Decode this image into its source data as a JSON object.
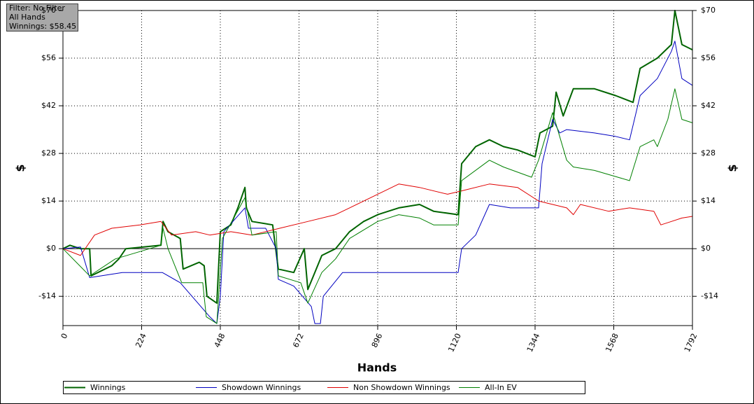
{
  "chart_data": {
    "type": "line",
    "info": [
      "Filter: No Filter",
      "All Hands",
      "Winnings: $58.45"
    ],
    "xlabel": "Hands",
    "ylabel": "$",
    "y2label": "$",
    "xlim": [
      0,
      1792
    ],
    "xticks": [
      0,
      224,
      448,
      672,
      896,
      1120,
      1344,
      1568,
      1792
    ],
    "ylim": [
      -22.6,
      70
    ],
    "yticks": [
      {
        "value": -14,
        "label": "-$14"
      },
      {
        "value": 0,
        "label": "$0"
      },
      {
        "value": 14,
        "label": "$14"
      },
      {
        "value": 28,
        "label": "$28"
      },
      {
        "value": 42,
        "label": "$42"
      },
      {
        "value": 56,
        "label": "$56"
      },
      {
        "value": 70,
        "label": "$70"
      }
    ],
    "grid": true,
    "series": [
      {
        "name": "Winnings",
        "color": "#006400",
        "x": [
          0,
          20,
          50,
          76,
          80,
          139,
          159,
          179,
          279,
          285,
          299,
          334,
          342,
          388,
          402,
          410,
          438,
          448,
          478,
          498,
          518,
          522,
          538,
          597,
          613,
          657,
          687,
          697,
          737,
          776,
          816,
          856,
          896,
          956,
          1015,
          1055,
          1125,
          1135,
          1175,
          1214,
          1254,
          1294,
          1344,
          1358,
          1394,
          1404,
          1424,
          1453,
          1513,
          1573,
          1623,
          1643,
          1692,
          1732,
          1742,
          1762,
          1792
        ],
        "values": [
          0,
          1,
          0,
          0,
          -8,
          -5,
          -3,
          0,
          1,
          8,
          5,
          3,
          -6,
          -4,
          -5,
          -14,
          -16,
          5,
          7,
          12,
          18,
          12,
          8,
          7,
          -6,
          -7,
          0,
          -12,
          -2,
          0,
          5,
          8,
          10,
          12,
          13,
          11,
          10,
          25,
          30,
          32,
          30,
          29,
          27,
          34,
          36,
          46,
          39,
          47,
          47,
          45,
          43,
          53,
          56,
          60,
          70,
          60,
          58.45
        ]
      },
      {
        "name": "Showdown Winnings",
        "color": "#0000c0",
        "x": [
          0,
          50,
          76,
          169,
          283,
          334,
          418,
          438,
          448,
          458,
          518,
          528,
          577,
          607,
          613,
          657,
          707,
          717,
          733,
          741,
          796,
          856,
          936,
          1015,
          1125,
          1135,
          1175,
          1214,
          1274,
          1354,
          1364,
          1394,
          1414,
          1434,
          1513,
          1573,
          1613,
          1643,
          1692,
          1732,
          1742,
          1762,
          1792
        ],
        "values": [
          0,
          0.5,
          -8.5,
          -7,
          -7,
          -10,
          -20,
          -22,
          -14,
          5,
          12,
          6,
          6,
          0,
          -9,
          -11,
          -17,
          -22,
          -22,
          -14,
          -7,
          -7,
          -7,
          -7,
          -7,
          0,
          4,
          13,
          12,
          12,
          25,
          38,
          34,
          35,
          34,
          33,
          32,
          45,
          50,
          58,
          61,
          50,
          48
        ]
      },
      {
        "name": "Non Showdown Winnings",
        "color": "#e00000",
        "x": [
          0,
          50,
          90,
          139,
          219,
          279,
          309,
          378,
          418,
          478,
          538,
          617,
          697,
          776,
          816,
          896,
          956,
          1015,
          1095,
          1135,
          1214,
          1294,
          1354,
          1394,
          1434,
          1453,
          1473,
          1553,
          1613,
          1682,
          1702,
          1732,
          1762,
          1792
        ],
        "values": [
          0,
          -2,
          4,
          6,
          7,
          8,
          4,
          5,
          4,
          5,
          4,
          6,
          8,
          10,
          12,
          16,
          19,
          18,
          16,
          17,
          19,
          18,
          14,
          13,
          12,
          10,
          13,
          11,
          12,
          11,
          7,
          8,
          9,
          9.5
        ]
      },
      {
        "name": "All-In EV",
        "color": "#008000",
        "x": [
          0,
          76,
          149,
          279,
          285,
          299,
          338,
          398,
          408,
          438,
          454,
          518,
          538,
          607,
          613,
          677,
          697,
          737,
          776,
          816,
          896,
          956,
          1015,
          1055,
          1125,
          1135,
          1214,
          1254,
          1334,
          1354,
          1394,
          1434,
          1453,
          1513,
          1613,
          1643,
          1682,
          1692,
          1722,
          1742,
          1762,
          1792
        ],
        "values": [
          0,
          -8,
          -3,
          1,
          6,
          0,
          -10,
          -10,
          -20,
          -22,
          3,
          15,
          4,
          5,
          -8,
          -10,
          -16,
          -7,
          -3,
          3,
          8,
          10,
          9,
          7,
          7,
          20,
          26,
          24,
          21,
          26,
          40,
          26,
          24,
          23,
          20,
          30,
          32,
          30,
          38,
          47,
          38,
          37
        ]
      }
    ]
  }
}
